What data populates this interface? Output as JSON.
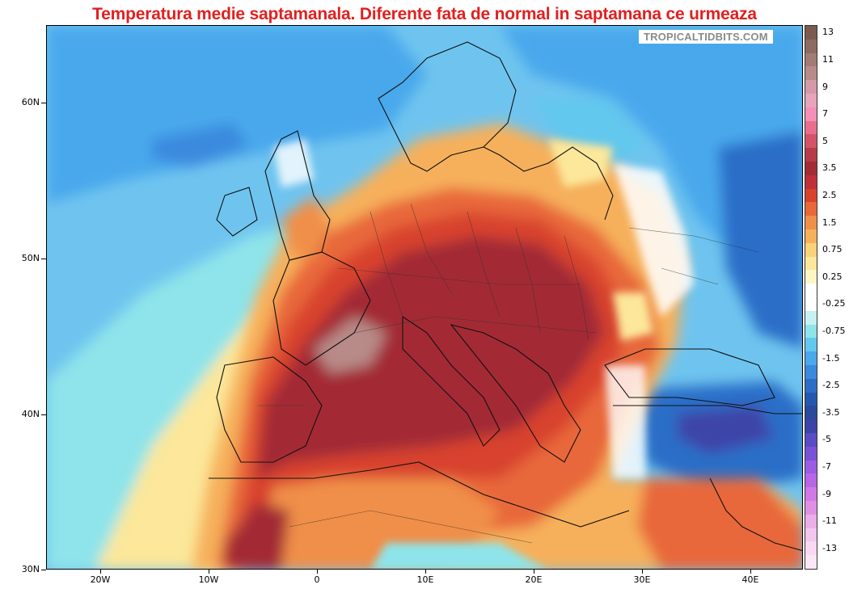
{
  "title": "Temperatura medie saptamanala. Diferente fata de normal in saptamana ce urmeaza",
  "watermark": "TROPICALTIDBITS.COM",
  "axes": {
    "latitude_labels": [
      "60N",
      "50N",
      "40N",
      "30N"
    ],
    "longitude_labels": [
      "20W",
      "10W",
      "0",
      "10E",
      "20E",
      "30E",
      "40E"
    ]
  },
  "legend": {
    "levels": [
      {
        "label": "13",
        "color": "#7b5a4f"
      },
      {
        "label": "",
        "color": "#8e6b61"
      },
      {
        "label": "11",
        "color": "#a27c74"
      },
      {
        "label": "",
        "color": "#b88b88"
      },
      {
        "label": "9",
        "color": "#d49aa8"
      },
      {
        "label": "",
        "color": "#e8a4bd"
      },
      {
        "label": "7",
        "color": "#f48fb7"
      },
      {
        "label": "",
        "color": "#e86f8c"
      },
      {
        "label": "5",
        "color": "#d45367"
      },
      {
        "label": "",
        "color": "#b83b4b"
      },
      {
        "label": "3.5",
        "color": "#a32b35"
      },
      {
        "label": "",
        "color": "#c0303a"
      },
      {
        "label": "2.5",
        "color": "#d8432d"
      },
      {
        "label": "",
        "color": "#e8683a"
      },
      {
        "label": "1.5",
        "color": "#f08f4a"
      },
      {
        "label": "",
        "color": "#f6b05c"
      },
      {
        "label": "0.75",
        "color": "#fad27a"
      },
      {
        "label": "",
        "color": "#fce79a"
      },
      {
        "label": "0.25",
        "color": "#fdf6c4"
      },
      {
        "label": "",
        "color": "#ffffff"
      },
      {
        "label": "-0.25",
        "color": "#ffffff"
      },
      {
        "label": "",
        "color": "#c6f0f2"
      },
      {
        "label": "-0.75",
        "color": "#8ee4ea"
      },
      {
        "label": "",
        "color": "#62c8ee"
      },
      {
        "label": "-1.5",
        "color": "#4aa8ec"
      },
      {
        "label": "",
        "color": "#3a8ade"
      },
      {
        "label": "-2.5",
        "color": "#2a6ec8"
      },
      {
        "label": "",
        "color": "#2458b0"
      },
      {
        "label": "-3.5",
        "color": "#2a4a9c"
      },
      {
        "label": "",
        "color": "#3c44a8"
      },
      {
        "label": "-5",
        "color": "#5a4cc4"
      },
      {
        "label": "",
        "color": "#7a52d8"
      },
      {
        "label": "-7",
        "color": "#9c5ce4"
      },
      {
        "label": "",
        "color": "#b866e8"
      },
      {
        "label": "-9",
        "color": "#d078e6"
      },
      {
        "label": "",
        "color": "#e090e4"
      },
      {
        "label": "-11",
        "color": "#ebaee8"
      },
      {
        "label": "",
        "color": "#f3c6ee"
      },
      {
        "label": "-13",
        "color": "#f8d8f2"
      },
      {
        "label": "",
        "color": "#fbe6f6"
      }
    ]
  },
  "colors": {
    "ocean_base": "#6fc4ef",
    "sea_cold": "#3a8ade",
    "warm_core": "#a32b35",
    "title_color": "#e02020"
  }
}
